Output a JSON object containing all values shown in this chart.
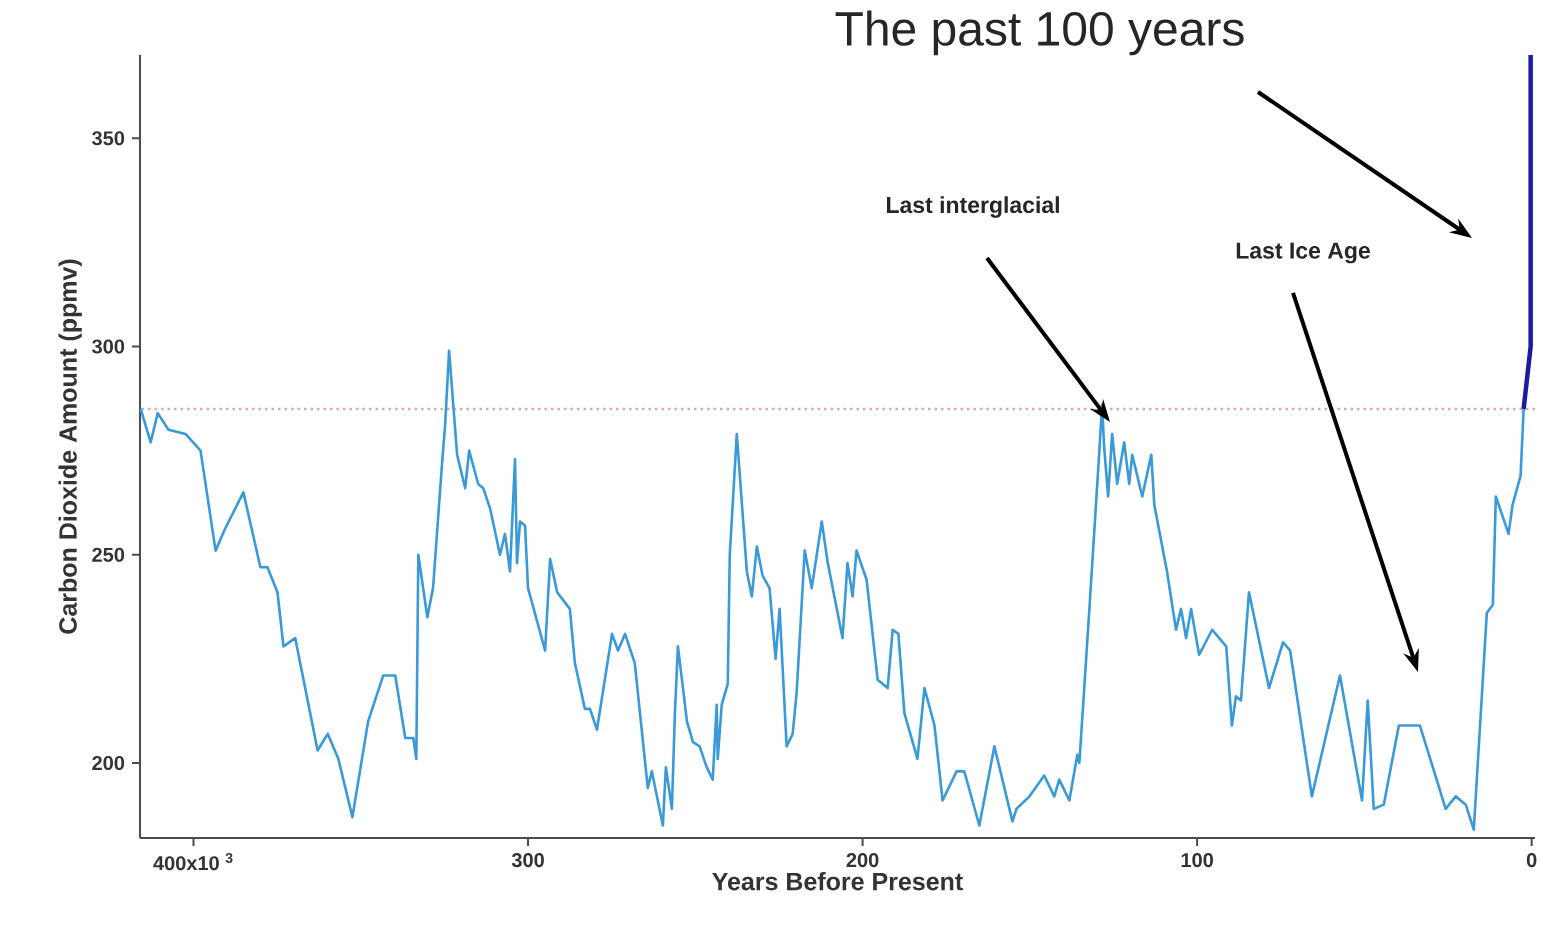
{
  "chart_data": {
    "type": "line",
    "xlabel": "Years Before Present",
    "ylabel": "Carbon Dioxide Amount (ppmv)",
    "xlim": [
      416,
      -1
    ],
    "ylim": [
      182,
      370
    ],
    "xticks": [
      {
        "value": 400,
        "label": "400x10 $^{3}$"
      },
      300,
      200,
      100,
      0
    ],
    "yticks": [
      200,
      250,
      300,
      350
    ],
    "grid": false,
    "series": [
      {
        "color": "#3a9ad9",
        "x": [
          415.8,
          412.8,
          410.7,
          407.5,
          402.4,
          397.9,
          393.4,
          390.7,
          385.1,
          380,
          377.9,
          374.9,
          373.1,
          369.6,
          362.9,
          359.9,
          356.7,
          352.5,
          347.8,
          343.3,
          339.7,
          336.7,
          334.3,
          333.4,
          332.8,
          330.1,
          328.4,
          325.7,
          324.8,
          323.6,
          321.2,
          318.8,
          317.6,
          314.9,
          313.4,
          311.3,
          308.4,
          306.9,
          305.4,
          303.9,
          303.3,
          302.4,
          300.9,
          300,
          294.9,
          293.4,
          291.3,
          287.5,
          286,
          283,
          281.5,
          279.4,
          274.9,
          273.1,
          271,
          268.1,
          264.2,
          263,
          259.7,
          258.8,
          257,
          256.1,
          255.2,
          252.5,
          250.7,
          248.7,
          246.6,
          244.8,
          243.6,
          243.3,
          242.1,
          240.3,
          239.7,
          237.6,
          234.6,
          233.1,
          231.6,
          229.9,
          227.8,
          226,
          224.8,
          222.7,
          220.9,
          219.7,
          217.3,
          215.2,
          212.2,
          210.4,
          206,
          204.5,
          203,
          201.8,
          198.8,
          195.5,
          192.5,
          191,
          189.3,
          187.5,
          183.6,
          181.5,
          178.5,
          176.1,
          171.9,
          169.6,
          165.1,
          160.6,
          155.2,
          154,
          150.1,
          145.7,
          142.7,
          141.2,
          138.2,
          135.8,
          135.2,
          132.2,
          129.3,
          128.4,
          127.8,
          126.6,
          125.4,
          123.9,
          121.8,
          120.3,
          119.4,
          116.4,
          113.7,
          112.8,
          109,
          106.3,
          104.8,
          103.3,
          101.8,
          99.4,
          95.5,
          91.3,
          89.6,
          88.4,
          86.9,
          84.5,
          78.5,
          74.3,
          72.2,
          65.7,
          57.3,
          50.7,
          49,
          47.2,
          44.2,
          39.7,
          33.4,
          25.7,
          22.7,
          19.7,
          17.3,
          13.4,
          11.6,
          10.7,
          6.9,
          5.7,
          3.3,
          2.4
        ],
        "values": [
          285,
          277,
          284,
          280,
          279,
          275,
          251,
          256,
          265,
          247,
          247,
          241,
          228,
          230,
          203,
          207,
          201,
          187,
          210,
          221,
          221,
          206,
          206,
          201,
          250,
          235,
          242,
          272,
          281,
          299,
          274,
          266,
          275,
          267,
          266,
          261,
          250,
          255,
          246,
          273,
          248,
          258,
          257,
          242,
          227,
          249,
          241,
          237,
          224,
          213,
          213,
          208,
          231,
          227,
          231,
          224,
          194,
          198,
          185,
          199,
          189,
          212,
          228,
          210,
          205,
          204,
          199,
          196,
          214,
          201,
          214,
          219,
          250,
          279,
          246,
          240,
          252,
          245,
          242,
          225,
          237,
          204,
          207,
          217,
          251,
          242,
          258,
          248,
          230,
          248,
          240,
          251,
          244,
          220,
          218,
          232,
          231,
          212,
          201,
          218,
          209,
          191,
          198,
          198,
          185,
          204,
          186,
          189,
          192,
          197,
          192,
          196,
          191,
          202,
          200,
          237,
          274,
          286,
          276,
          264,
          279,
          267,
          277,
          267,
          274,
          264,
          274,
          262,
          246,
          232,
          237,
          230,
          237,
          226,
          232,
          228,
          209,
          216,
          215,
          241,
          218,
          229,
          227,
          192,
          221,
          191,
          215,
          189,
          190,
          209,
          209,
          189,
          192,
          190,
          184,
          236,
          238,
          264,
          255,
          262,
          269,
          285
        ]
      },
      {
        "color": "#1a1aa8",
        "x": [
          2.4,
          0.3,
          0.3
        ],
        "values": [
          285,
          300,
          370
        ]
      }
    ],
    "ref_lines": [
      {
        "axis": "y",
        "value": 285,
        "color": "#e0a8a8",
        "line_style": "dotted"
      }
    ],
    "annotations": [
      "The past 100 years",
      "Last interglacial",
      "Last Ice Age"
    ]
  }
}
